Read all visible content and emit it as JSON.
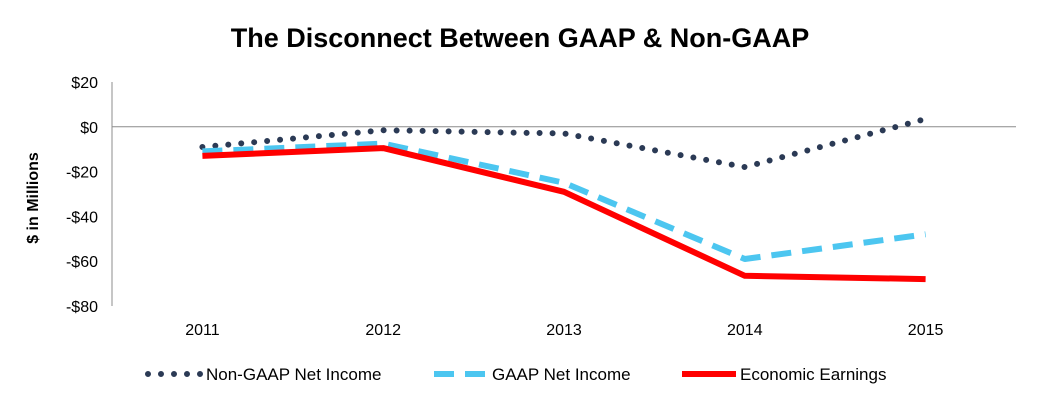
{
  "chart_data": {
    "type": "line",
    "title": "The Disconnect Between GAAP & Non-GAAP",
    "ylabel": "$ in Millions",
    "xlabel": "",
    "categories": [
      "2011",
      "2012",
      "2013",
      "2014",
      "2015"
    ],
    "ylim": [
      -80,
      20
    ],
    "yticks": [
      20,
      0,
      -20,
      -40,
      -60,
      -80
    ],
    "ytick_labels": [
      "$20",
      "$0",
      "-$20",
      "-$40",
      "-$60",
      "-$80"
    ],
    "legend_position": "bottom",
    "grid": false,
    "series": [
      {
        "name": "Non-GAAP Net Income",
        "values": [
          -9,
          -1.5,
          -3,
          -18,
          3.5
        ],
        "color": "#2b3a55",
        "style": "dotted"
      },
      {
        "name": "GAAP Net Income",
        "values": [
          -11,
          -7.5,
          -25,
          -59,
          -48
        ],
        "color": "#4cc6f0",
        "style": "dashed"
      },
      {
        "name": "Economic Earnings",
        "values": [
          -13,
          -9.5,
          -29,
          -66.5,
          -68
        ],
        "color": "#ff0000",
        "style": "solid"
      }
    ]
  }
}
